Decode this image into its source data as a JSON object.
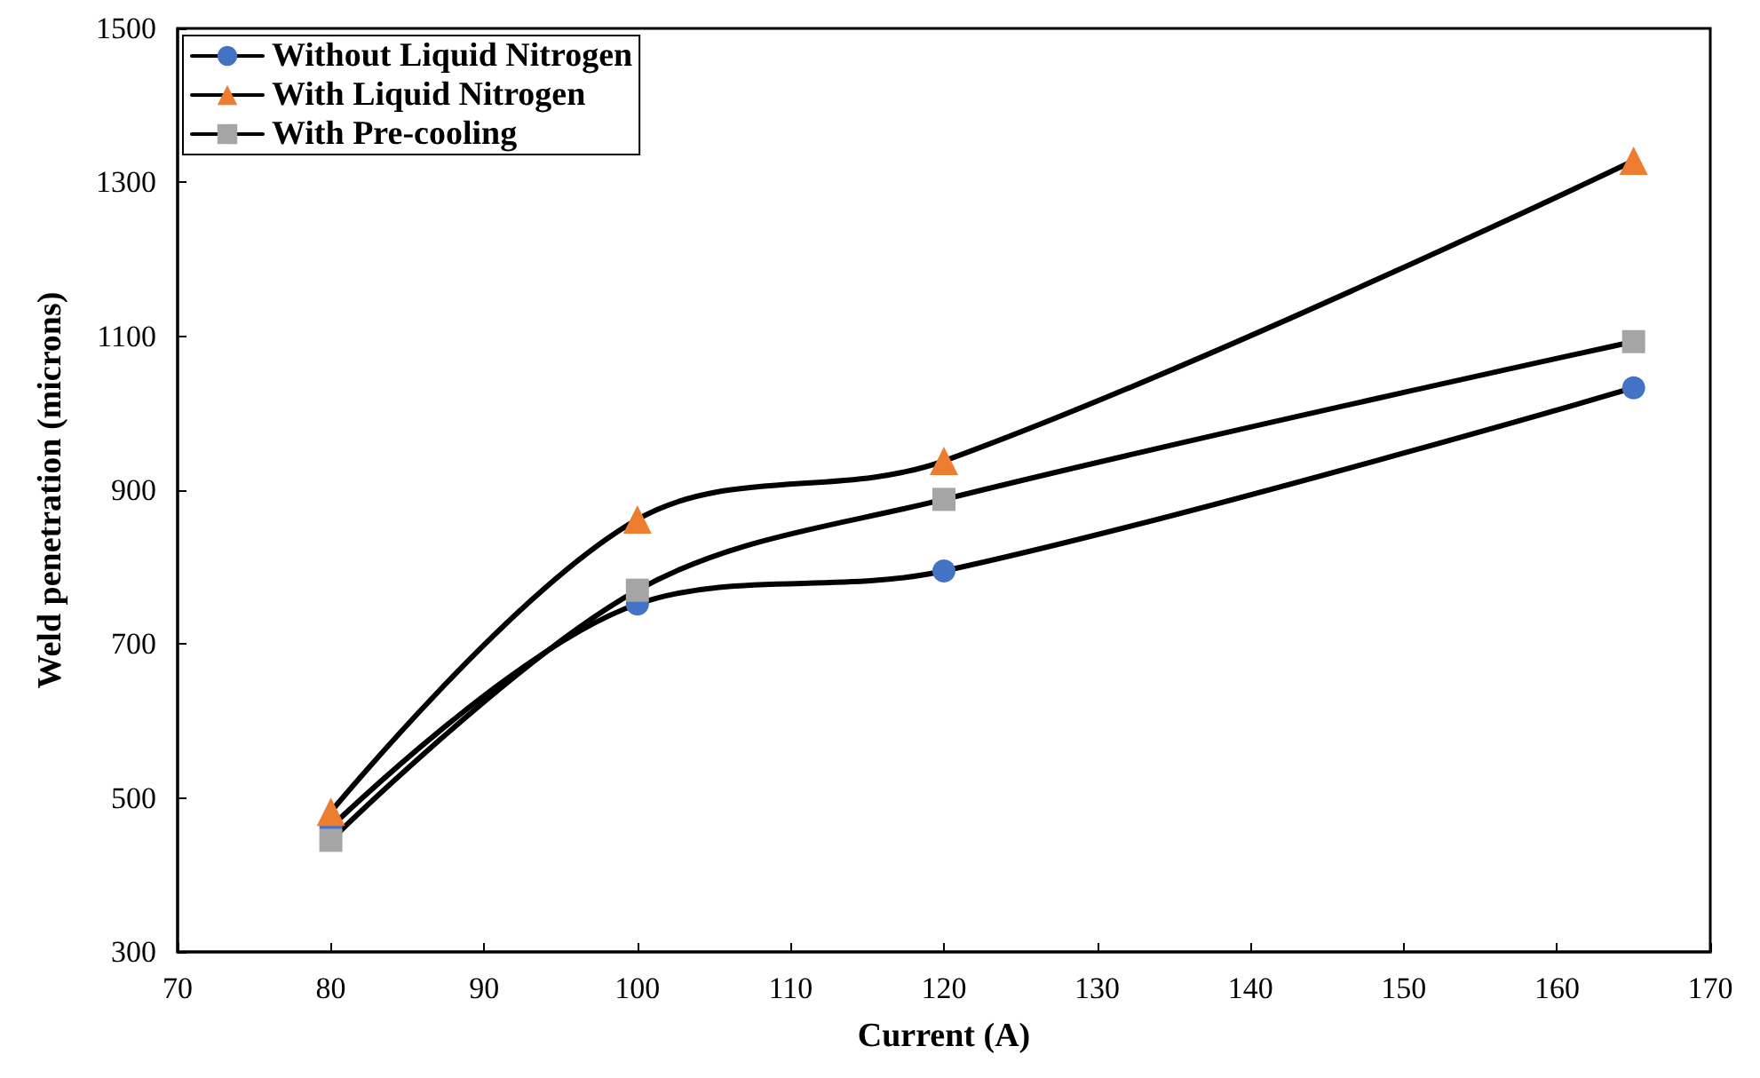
{
  "chart_data": {
    "type": "line",
    "xlabel": "Current (A)",
    "ylabel": "Weld penetration (microns)",
    "x": [
      80,
      100,
      120,
      165
    ],
    "series": [
      {
        "name": "Without Liquid Nitrogen",
        "color": "#4472c4",
        "marker": "circle",
        "values": [
          462,
          752,
          795,
          1033
        ]
      },
      {
        "name": "With Liquid Nitrogen",
        "color": "#ed7d31",
        "marker": "triangle",
        "values": [
          482,
          862,
          938,
          1328
        ]
      },
      {
        "name": "With Pre-cooling",
        "color": "#a5a5a5",
        "marker": "square",
        "values": [
          445,
          770,
          888,
          1093
        ]
      }
    ],
    "xlim": [
      70,
      170
    ],
    "xticks": [
      70,
      80,
      90,
      100,
      110,
      120,
      130,
      140,
      150,
      160,
      170
    ],
    "ylim": [
      300,
      1500
    ],
    "yticks": [
      300,
      500,
      700,
      900,
      1100,
      1300,
      1500
    ],
    "grid": false,
    "legend": "top left",
    "line_style": "solid"
  }
}
